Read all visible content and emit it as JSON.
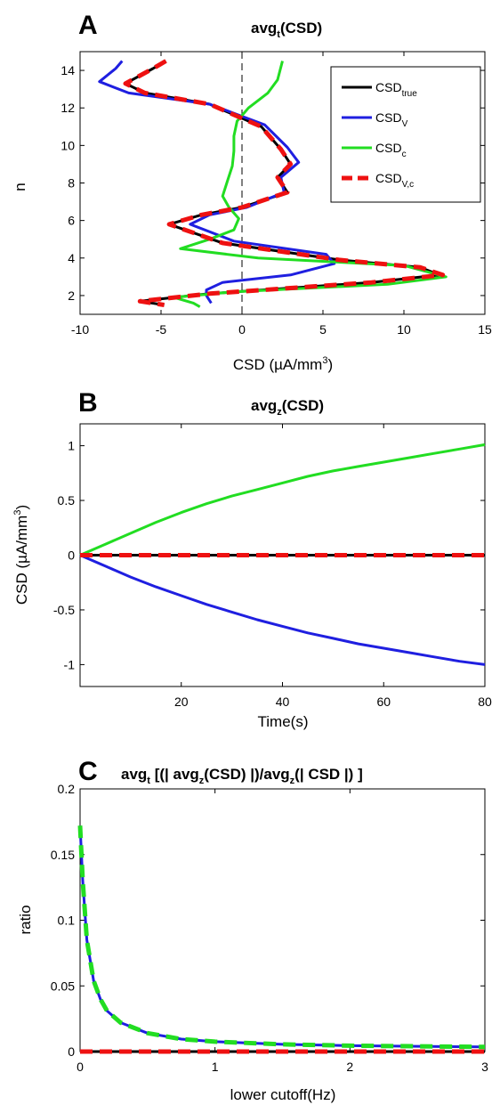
{
  "chart_data": [
    {
      "panel": "A",
      "type": "line",
      "title": "avg",
      "title_sub": "t",
      "title_rest": "(CSD)",
      "xlabel": "CSD (µA/mm",
      "xlabel_sup": "3",
      "xlabel_end": ")",
      "ylabel": "n",
      "xlim": [
        -10,
        15
      ],
      "ylim": [
        1,
        15
      ],
      "xticks": [
        "-10",
        "-5",
        "0",
        "5",
        "10",
        "15"
      ],
      "yticks": [
        "2",
        "4",
        "6",
        "8",
        "10",
        "12",
        "14"
      ],
      "legend_position": "top-right",
      "legend": [
        {
          "name": "CSD",
          "sub": "true",
          "color": "#000000",
          "dash": false
        },
        {
          "name": "CSD",
          "sub": "V",
          "color": "#1f1fe0",
          "dash": false
        },
        {
          "name": "CSD",
          "sub": "c",
          "color": "#22dd22",
          "dash": false
        },
        {
          "name": "CSD",
          "sub": "V,c",
          "color": "#ee1111",
          "dash": true
        }
      ],
      "series": [
        {
          "name": "CSD_true",
          "color": "#000000",
          "x": [
            -4.7,
            -5.5,
            -7.2,
            -6.0,
            -2.0,
            1.2,
            2.4,
            3.0,
            2.2,
            2.8,
            0.0,
            -2.5,
            -4.5,
            -1.2,
            6.0,
            11.0,
            12.2,
            8.0,
            -2.0,
            -6.3,
            -4.8
          ],
          "y": [
            14.5,
            14.1,
            13.3,
            12.8,
            12.2,
            11.0,
            9.8,
            9.0,
            8.3,
            7.5,
            6.7,
            6.3,
            5.8,
            4.8,
            3.9,
            3.5,
            3.1,
            2.7,
            2.1,
            1.7,
            1.5
          ]
        },
        {
          "name": "CSD_V",
          "color": "#1f1fe0",
          "x": [
            -7.4,
            -7.8,
            -8.8,
            -7.0,
            -2.0,
            1.4,
            2.8,
            3.5,
            2.4,
            2.6,
            0.3,
            -2.0,
            -3.2,
            -0.5,
            5.2,
            5.7,
            3.0,
            -1.2,
            -2.2,
            -2.2,
            -1.9
          ],
          "y": [
            14.5,
            14.1,
            13.4,
            12.8,
            12.2,
            11.1,
            9.9,
            9.1,
            8.3,
            7.5,
            6.7,
            6.3,
            5.8,
            4.9,
            4.2,
            3.7,
            3.1,
            2.7,
            2.3,
            2.0,
            1.6
          ]
        },
        {
          "name": "CSD_c",
          "color": "#22dd22",
          "x": [
            2.5,
            2.2,
            1.6,
            0.4,
            -0.3,
            -0.5,
            -0.5,
            -0.6,
            -0.9,
            -1.2,
            -0.8,
            -0.2,
            -0.5,
            -2.0,
            -3.8,
            1.0,
            10.0,
            12.6,
            9.0,
            -0.5,
            -4.2,
            -3.0,
            -2.6
          ],
          "y": [
            14.5,
            13.5,
            12.8,
            12.0,
            11.3,
            10.5,
            9.7,
            8.9,
            8.1,
            7.3,
            6.7,
            6.1,
            5.5,
            5.0,
            4.5,
            4.0,
            3.6,
            3.0,
            2.6,
            2.2,
            1.9,
            1.6,
            1.4
          ]
        },
        {
          "name": "CSD_V,c",
          "color": "#ee1111",
          "dash": true,
          "x": [
            -4.7,
            -5.5,
            -7.2,
            -6.0,
            -2.0,
            1.2,
            2.4,
            3.0,
            2.2,
            2.8,
            0.0,
            -2.5,
            -4.5,
            -1.2,
            6.0,
            11.0,
            12.4,
            8.0,
            -2.0,
            -6.3,
            -4.8
          ],
          "y": [
            14.5,
            14.1,
            13.3,
            12.8,
            12.2,
            11.0,
            9.8,
            9.0,
            8.3,
            7.5,
            6.7,
            6.3,
            5.8,
            4.8,
            3.9,
            3.5,
            3.1,
            2.7,
            2.1,
            1.7,
            1.5
          ]
        }
      ]
    },
    {
      "panel": "B",
      "type": "line",
      "title": "avg",
      "title_sub": "z",
      "title_rest": "(CSD)",
      "xlabel": "Time(s)",
      "ylabel": "CSD (µA/mm",
      "ylabel_sup": "3",
      "ylabel_end": ")",
      "xlim": [
        0,
        80
      ],
      "ylim": [
        -1.2,
        1.2
      ],
      "xticks": [
        "20",
        "40",
        "60",
        "80"
      ],
      "yticks": [
        "-1",
        "-0.5",
        "0",
        "0.5",
        "1"
      ],
      "series": [
        {
          "name": "CSD_true",
          "color": "#000000",
          "x": [
            0,
            10,
            20,
            30,
            40,
            50,
            60,
            70,
            80
          ],
          "y": [
            0,
            0,
            0,
            0,
            0,
            0,
            0,
            0,
            0
          ]
        },
        {
          "name": "CSD_V",
          "color": "#1f1fe0",
          "x": [
            0,
            5,
            10,
            15,
            20,
            25,
            30,
            35,
            40,
            45,
            50,
            55,
            60,
            65,
            70,
            75,
            80
          ],
          "y": [
            0,
            -0.1,
            -0.2,
            -0.29,
            -0.37,
            -0.45,
            -0.52,
            -0.59,
            -0.65,
            -0.71,
            -0.76,
            -0.81,
            -0.85,
            -0.89,
            -0.93,
            -0.97,
            -1.0
          ]
        },
        {
          "name": "CSD_c",
          "color": "#22dd22",
          "x": [
            0,
            5,
            10,
            15,
            20,
            25,
            30,
            35,
            40,
            45,
            50,
            55,
            60,
            65,
            70,
            75,
            80
          ],
          "y": [
            0,
            0.1,
            0.2,
            0.3,
            0.39,
            0.47,
            0.54,
            0.6,
            0.66,
            0.72,
            0.77,
            0.81,
            0.85,
            0.89,
            0.93,
            0.97,
            1.01
          ]
        },
        {
          "name": "CSD_V,c",
          "color": "#ee1111",
          "dash": true,
          "x": [
            0,
            10,
            20,
            30,
            40,
            50,
            60,
            70,
            80
          ],
          "y": [
            0,
            0,
            0,
            0,
            0,
            0,
            0,
            0,
            0
          ]
        }
      ]
    },
    {
      "panel": "C",
      "type": "line",
      "title_parts": [
        "avg",
        "t",
        " [(| avg",
        "z",
        "(CSD) |)/avg",
        "z",
        "(| CSD |) ]"
      ],
      "xlabel": "lower cutoff(Hz)",
      "ylabel": "ratio",
      "xlim": [
        0,
        3
      ],
      "ylim": [
        0,
        0.2
      ],
      "xticks": [
        "0",
        "1",
        "2",
        "3"
      ],
      "yticks": [
        "0",
        "0.05",
        "0.1",
        "0.15",
        "0.2"
      ],
      "series": [
        {
          "name": "CSD_true",
          "color": "#000000",
          "x": [
            0,
            0.5,
            1,
            1.5,
            2,
            2.5,
            3
          ],
          "y": [
            0,
            0,
            0,
            0,
            0,
            0,
            0
          ]
        },
        {
          "name": "CSD_V",
          "color": "#1f1fe0",
          "x": [
            0,
            0.02,
            0.05,
            0.1,
            0.15,
            0.2,
            0.3,
            0.5,
            0.75,
            1.0,
            1.5,
            2.0,
            2.5,
            3.0
          ],
          "y": [
            0.172,
            0.13,
            0.085,
            0.054,
            0.04,
            0.031,
            0.022,
            0.014,
            0.0095,
            0.0075,
            0.0055,
            0.0045,
            0.004,
            0.0035
          ]
        },
        {
          "name": "CSD_c",
          "color": "#22dd22",
          "dash": true,
          "x": [
            0,
            0.02,
            0.05,
            0.1,
            0.15,
            0.2,
            0.3,
            0.5,
            0.75,
            1.0,
            1.5,
            2.0,
            2.5,
            3.0
          ],
          "y": [
            0.172,
            0.13,
            0.085,
            0.054,
            0.04,
            0.031,
            0.022,
            0.014,
            0.0095,
            0.0075,
            0.0055,
            0.0045,
            0.004,
            0.0035
          ]
        },
        {
          "name": "CSD_V,c",
          "color": "#ee1111",
          "dash": true,
          "x": [
            0,
            0.5,
            1,
            1.5,
            2,
            2.5,
            3
          ],
          "y": [
            0,
            0,
            0,
            0,
            0,
            0,
            0
          ]
        }
      ]
    }
  ]
}
